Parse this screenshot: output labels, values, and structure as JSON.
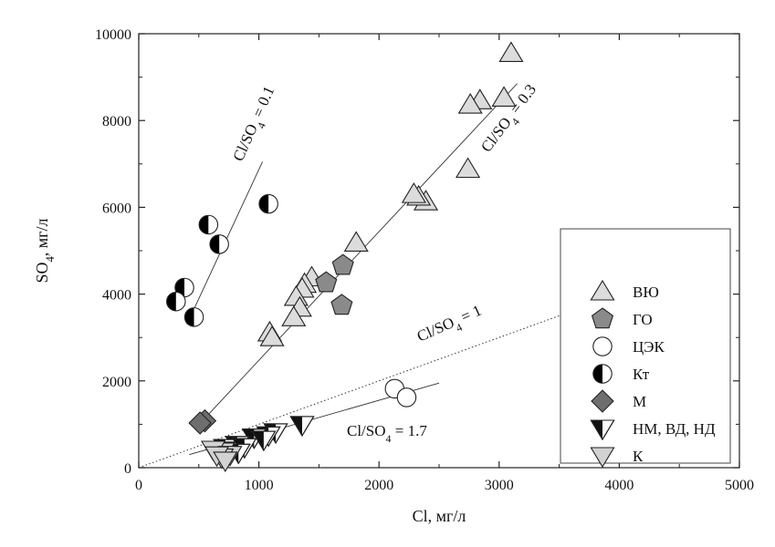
{
  "chart_data": {
    "type": "scatter",
    "xlabel": "Cl, мг/л",
    "ylabel": "SO4, мг/л",
    "ylabel_main": "SO",
    "ylabel_sub": "4",
    "ylabel_tail": ", мг/л",
    "xlim": [
      0,
      5000
    ],
    "ylim": [
      0,
      10000
    ],
    "x_ticks": [
      0,
      1000,
      2000,
      3000,
      4000,
      5000
    ],
    "y_ticks": [
      0,
      2000,
      4000,
      6000,
      8000,
      10000
    ],
    "x_tick_labels": [
      "0",
      "1000",
      "2000",
      "3000",
      "4000",
      "5000"
    ],
    "y_tick_labels": [
      "0",
      "2000",
      "4000",
      "6000",
      "8000",
      "10000"
    ],
    "grid": false,
    "legend_position": "right",
    "series": [
      {
        "name": "ВЮ",
        "marker": "triangle-up",
        "color": "#dcdcdc",
        "points": [
          [
            3100,
            9550
          ],
          [
            3040,
            8520
          ],
          [
            2840,
            8460
          ],
          [
            2760,
            8360
          ],
          [
            2740,
            6880
          ],
          [
            2390,
            6130
          ],
          [
            2330,
            6240
          ],
          [
            2290,
            6300
          ],
          [
            1810,
            5180
          ],
          [
            1440,
            4380
          ],
          [
            1380,
            4230
          ],
          [
            1360,
            4120
          ],
          [
            1310,
            3930
          ],
          [
            1340,
            3680
          ],
          [
            1290,
            3460
          ],
          [
            1090,
            3110
          ],
          [
            1110,
            3000
          ]
        ]
      },
      {
        "name": "ГО",
        "marker": "pentagon",
        "color": "#8a8a8a",
        "points": [
          [
            1700,
            4660
          ],
          [
            1560,
            4260
          ],
          [
            1690,
            3740
          ]
        ]
      },
      {
        "name": "ЦЭК",
        "marker": "circle-open",
        "color": "#ffffff",
        "points": [
          [
            2130,
            1820
          ],
          [
            2230,
            1620
          ]
        ]
      },
      {
        "name": "Кт",
        "marker": "circle-half",
        "color": "#000000",
        "points": [
          [
            580,
            5600
          ],
          [
            670,
            5150
          ],
          [
            1080,
            6080
          ],
          [
            380,
            4150
          ],
          [
            310,
            3830
          ],
          [
            460,
            3470
          ]
        ]
      },
      {
        "name": "М",
        "marker": "diamond",
        "color": "#6e6e6e",
        "points": [
          [
            550,
            1080
          ],
          [
            510,
            1030
          ]
        ]
      },
      {
        "name": "НМ, ВД, НД",
        "marker": "triangle-down-half",
        "color": "#111111",
        "points": [
          [
            1360,
            990
          ],
          [
            1140,
            820
          ],
          [
            1080,
            750
          ],
          [
            960,
            700
          ],
          [
            1040,
            650
          ],
          [
            820,
            530
          ],
          [
            720,
            460
          ],
          [
            780,
            400
          ],
          [
            880,
            480
          ],
          [
            830,
            350
          ]
        ]
      },
      {
        "name": "К",
        "marker": "triangle-down",
        "color": "#d2d2d2",
        "points": [
          [
            700,
            380
          ],
          [
            620,
            420
          ],
          [
            760,
            300
          ],
          [
            690,
            240
          ],
          [
            650,
            290
          ],
          [
            720,
            170
          ]
        ]
      }
    ],
    "trend_lines": [
      {
        "label_main": "Cl/SO",
        "label_sub": "4",
        "label_tail": " = 0.1",
        "from": [
          400,
          3300
        ],
        "to": [
          1030,
          7050
        ],
        "style": "solid"
      },
      {
        "label_main": "Cl/SO",
        "label_sub": "4",
        "label_tail": " = 0.3",
        "from": [
          520,
          1050
        ],
        "to": [
          3150,
          8850
        ],
        "style": "solid"
      },
      {
        "label_main": "Cl/SO",
        "label_sub": "4",
        "label_tail": " = 1",
        "from": [
          0,
          0
        ],
        "to": [
          3600,
          3600
        ],
        "style": "dotted"
      },
      {
        "label_main": "Cl/SO",
        "label_sub": "4",
        "label_tail": " = 1.7",
        "from": [
          420,
          300
        ],
        "to": [
          2500,
          1950
        ],
        "style": "solid"
      }
    ]
  }
}
